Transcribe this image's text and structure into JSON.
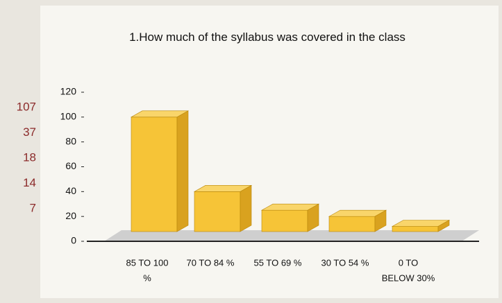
{
  "chart_data": {
    "type": "bar3d",
    "title": "1.How much of the syllabus was covered in the class",
    "categories": [
      [
        "85 TO 100",
        "%"
      ],
      [
        "70 TO 84 %"
      ],
      [
        "55 TO 69 %"
      ],
      [
        "30 TO 54 %"
      ],
      [
        "0 TO",
        "BELOW 30%"
      ]
    ],
    "values": [
      100,
      40,
      25,
      20,
      12
    ],
    "color": "#f6c437",
    "ylim": [
      0,
      120
    ],
    "yticks": [
      0,
      20,
      40,
      60,
      80,
      100,
      120
    ],
    "side_labels": [
      107,
      37,
      18,
      14,
      7
    ]
  }
}
